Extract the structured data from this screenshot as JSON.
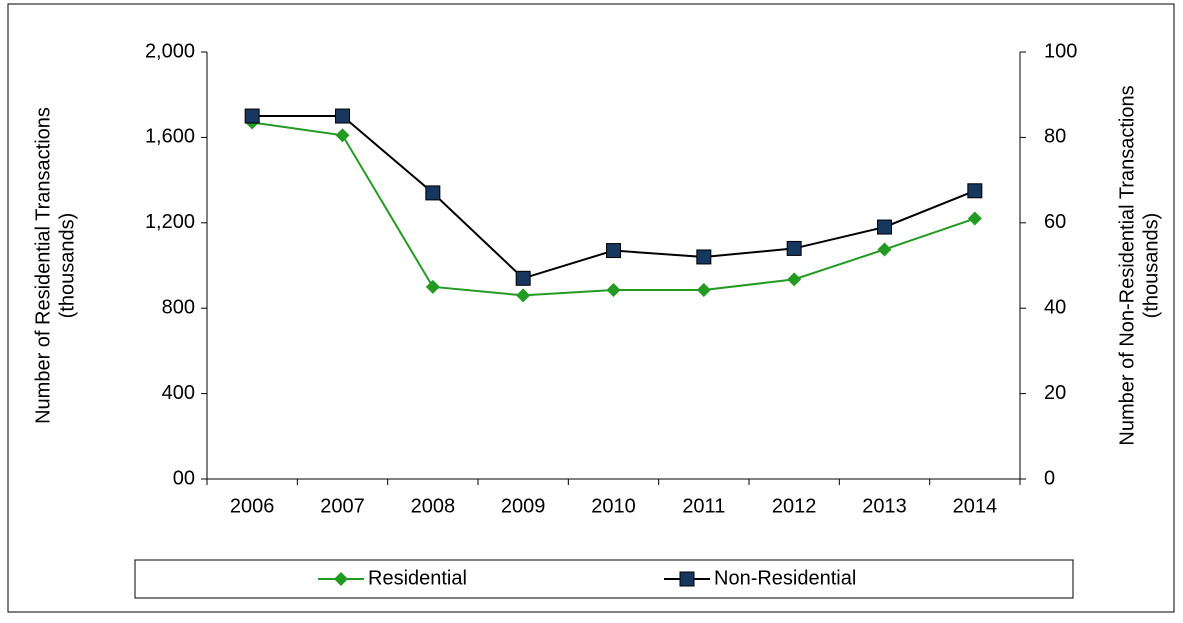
{
  "chart_data": {
    "type": "line",
    "categories": [
      "2006",
      "2007",
      "2008",
      "2009",
      "2010",
      "2011",
      "2012",
      "2013",
      "2014"
    ],
    "ylabel": [
      "Number of Residential Transactions",
      "(thousands)"
    ],
    "y2label": [
      "Number of Non-Residential Transactions",
      "(thousands)"
    ],
    "ylim": [
      0,
      2000
    ],
    "yticks": [
      {
        "value": 0,
        "label": "00"
      },
      400,
      800,
      {
        "value": 1200,
        "label": "1,200"
      },
      {
        "value": 1600,
        "label": "1,600"
      },
      {
        "value": 2000,
        "label": "2,000"
      }
    ],
    "y2lim": [
      0,
      100
    ],
    "y2ticks": [
      0,
      20,
      40,
      60,
      80,
      100
    ],
    "series": [
      {
        "name": "Residential",
        "color": "#239b23",
        "marker": "diamond",
        "values": [
          1670,
          1610,
          900,
          860,
          885,
          885,
          935,
          1075,
          1220
        ]
      },
      {
        "name": "Non-Residential",
        "color": "#000000",
        "marker_color": "#17375e",
        "marker": "square",
        "axis": "y2",
        "values": [
          85,
          85,
          67,
          47,
          53.5,
          52,
          54,
          59,
          67.5
        ]
      }
    ]
  }
}
